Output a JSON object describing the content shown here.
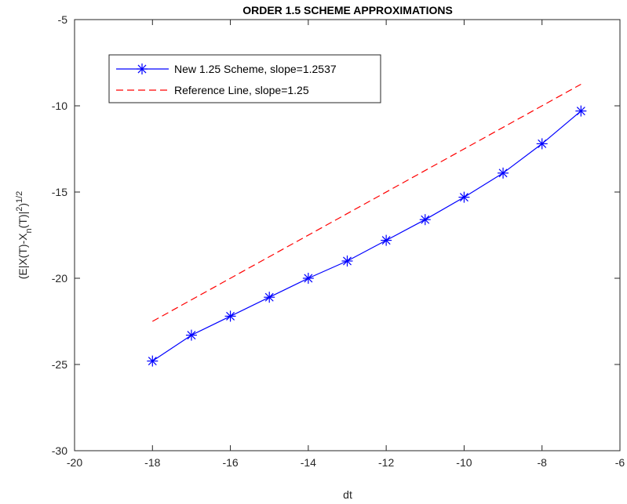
{
  "chart_data": {
    "type": "line",
    "title": "ORDER 1.5 SCHEME APPROXIMATIONS",
    "xlabel": "dt",
    "ylabel": "(E|X(T)-X_n(T)|^2)^1/2",
    "xlim": [
      -20,
      -6
    ],
    "ylim": [
      -30,
      -5
    ],
    "xticks": [
      -20,
      -18,
      -16,
      -14,
      -12,
      -10,
      -8,
      -6
    ],
    "yticks": [
      -30,
      -25,
      -20,
      -15,
      -10,
      -5
    ],
    "xtick_labels": [
      "-20",
      "-18",
      "-16",
      "-14",
      "-12",
      "-10",
      "-8",
      "-6"
    ],
    "ytick_labels": [
      "-30",
      "-25",
      "-20",
      "-15",
      "-10",
      "-5"
    ],
    "grid": false,
    "legend_position": "top-left",
    "series": [
      {
        "name": "New 1.25 Scheme, slope=1.2537",
        "color": "#0000ff",
        "line_style": "solid",
        "marker": "asterisk",
        "x": [
          -18,
          -17,
          -16,
          -15,
          -14,
          -13,
          -12,
          -11,
          -10,
          -9,
          -8,
          -7
        ],
        "y": [
          -24.8,
          -23.3,
          -22.2,
          -21.1,
          -20.0,
          -19.0,
          -17.8,
          -16.6,
          -15.3,
          -13.9,
          -12.2,
          -10.3
        ]
      },
      {
        "name": "Reference Line, slope=1.25",
        "color": "#ff0000",
        "line_style": "dashed",
        "marker": "none",
        "x": [
          -18,
          -7
        ],
        "y": [
          -22.5,
          -8.75
        ]
      }
    ]
  }
}
